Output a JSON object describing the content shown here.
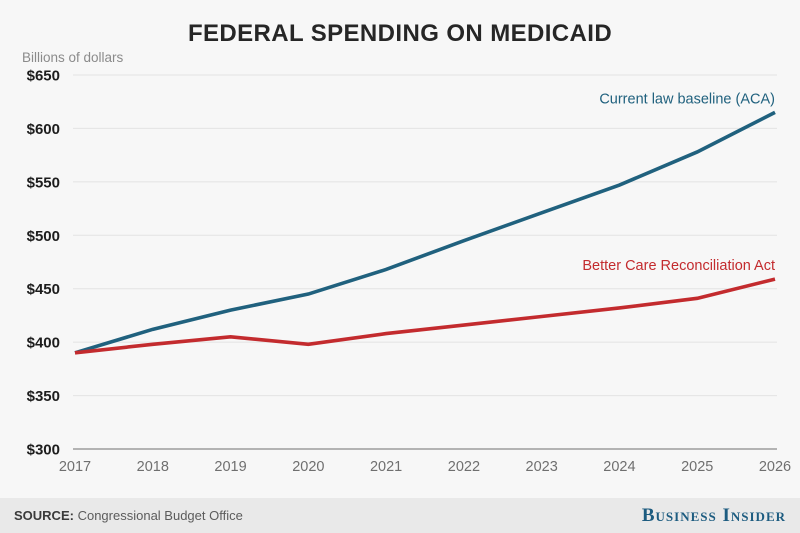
{
  "title": "FEDERAL SPENDING ON MEDICAID",
  "axis_title": "Billions of dollars",
  "footer": {
    "source_label": "SOURCE:",
    "source_text": "Congressional Budget Office",
    "brand": "Business Insider"
  },
  "colors": {
    "background": "#f7f7f7",
    "footer_background": "#e9e9e9",
    "title": "#262626",
    "gridline": "#e3e3e3",
    "axis_line": "#b3b3b3",
    "current_law": "#20617e",
    "bcra": "#c32b2e",
    "brand": "#1d5c80"
  },
  "chart_data": {
    "type": "line",
    "x": [
      2017,
      2018,
      2019,
      2020,
      2021,
      2022,
      2023,
      2024,
      2025,
      2026
    ],
    "series": [
      {
        "name": "Current law baseline (ACA)",
        "color": "#20617e",
        "values": [
          390,
          412,
          430,
          445,
          468,
          495,
          521,
          547,
          578,
          615
        ]
      },
      {
        "name": "Better Care Reconciliation Act",
        "color": "#c32b2e",
        "values": [
          390,
          398,
          405,
          398,
          408,
          416,
          424,
          432,
          441,
          459
        ]
      }
    ],
    "title": "FEDERAL SPENDING ON MEDICAID",
    "ylabel": "Billions of dollars",
    "xlabel": "",
    "ylim": [
      300,
      650
    ],
    "y_ticks": [
      300,
      350,
      400,
      450,
      500,
      550,
      600,
      650
    ],
    "y_tick_prefix": "$",
    "grid": "horizontal",
    "legend_position": "inline-right-of-lines"
  }
}
